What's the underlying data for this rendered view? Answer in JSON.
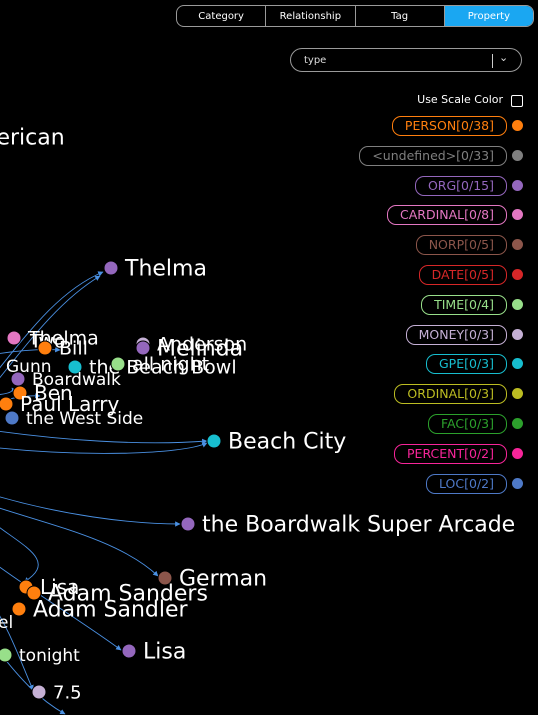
{
  "tabs": [
    {
      "label": "Category"
    },
    {
      "label": "Relationship"
    },
    {
      "label": "Tag"
    },
    {
      "label": "Property",
      "active": true
    }
  ],
  "property_select": {
    "value": "type",
    "chevron_icon": "chevron-down-icon"
  },
  "scale_color": {
    "label": "Use Scale Color",
    "checked": false
  },
  "legend": [
    {
      "label": "PERSON[0/38]",
      "color": "#ff7f0e"
    },
    {
      "label": "<undefined>[0/33]",
      "color": "#7f7f7f"
    },
    {
      "label": "ORG[0/15]",
      "color": "#9467bd"
    },
    {
      "label": "CARDINAL[0/8]",
      "color": "#e377c2"
    },
    {
      "label": "NORP[0/5]",
      "color": "#8c564b"
    },
    {
      "label": "DATE[0/5]",
      "color": "#d62728"
    },
    {
      "label": "TIME[0/4]",
      "color": "#98df8a"
    },
    {
      "label": "MONEY[0/3]",
      "color": "#c5b0d5"
    },
    {
      "label": "GPE[0/3]",
      "color": "#17becf"
    },
    {
      "label": "ORDINAL[0/3]",
      "color": "#bcbd22"
    },
    {
      "label": "FAC[0/3]",
      "color": "#2ca02c"
    },
    {
      "label": "PERCENT[0/2]",
      "color": "#f7259a"
    },
    {
      "label": "LOC[0/2]",
      "color": "#4e79c7"
    }
  ],
  "graph": {
    "nodes": [
      {
        "label": "American",
        "color": ""
      },
      {
        "label": "Thelma",
        "color": "#9467bd"
      },
      {
        "label": "Thelma",
        "color": "#e377c2"
      },
      {
        "label": "Two",
        "color": ""
      },
      {
        "label": "Anderson",
        "color": "#c5b0d5"
      },
      {
        "label": "Bill",
        "color": "#ff7f0e"
      },
      {
        "label": "Melinda",
        "color": "#9467bd"
      },
      {
        "label": "Gunn",
        "color": ""
      },
      {
        "label": "the Beach Bowl",
        "color": "#17becf"
      },
      {
        "label": "all night",
        "color": "#98df8a"
      },
      {
        "label": "Boardwalk",
        "color": "#9467bd"
      },
      {
        "label": "Ben",
        "color": "#ff7f0e"
      },
      {
        "label": "Paul Larry",
        "color": "#ff7f0e"
      },
      {
        "label": "the West Side",
        "color": "#4e79c7"
      },
      {
        "label": "Beach City",
        "color": "#17becf"
      },
      {
        "label": "the Boardwalk Super Arcade",
        "color": "#9467bd"
      },
      {
        "label": "German",
        "color": "#8c564b"
      },
      {
        "label": "Lisa",
        "color": "#ff7f0e"
      },
      {
        "label": "Adam Sanders",
        "color": "#ff7f0e"
      },
      {
        "label": "Adam Sandler",
        "color": "#ff7f0e"
      },
      {
        "label": "el",
        "color": ""
      },
      {
        "label": "Lisa",
        "color": "#9467bd"
      },
      {
        "label": "tonight",
        "color": "#98df8a"
      },
      {
        "label": "7.5",
        "color": "#c5b0d5"
      }
    ]
  }
}
